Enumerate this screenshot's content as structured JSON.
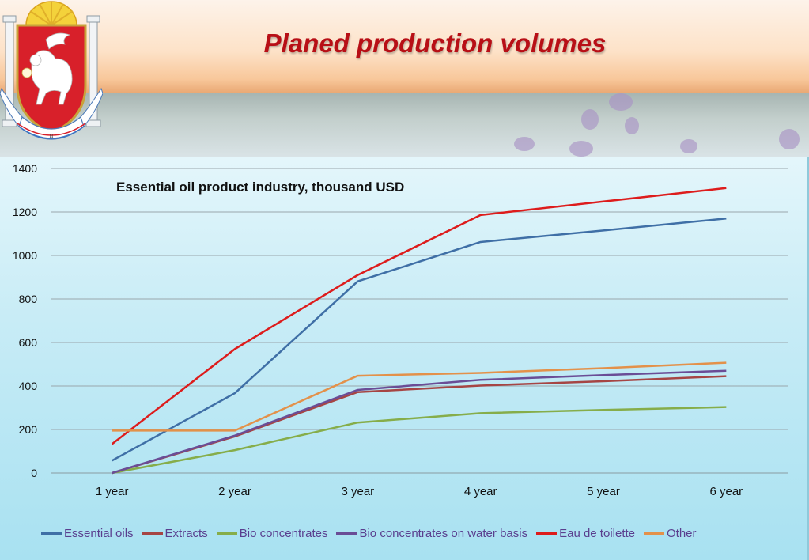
{
  "slide": {
    "title": "Planed production volumes"
  },
  "emblem": {
    "ribbon_text": "ПРОЦВЕТАНИЕ В ЕДИНСТВЕ",
    "ribbon_mark": "II"
  },
  "chart_data": {
    "type": "line",
    "title": "Essential oil product industry, thousand USD",
    "xlabel": "",
    "ylabel": "",
    "categories": [
      "1 year",
      "2 year",
      "3 year",
      "4 year",
      "5 year",
      "6 year"
    ],
    "ylim": [
      0,
      1400
    ],
    "yticks": [
      0,
      200,
      400,
      600,
      800,
      1000,
      1200,
      1400
    ],
    "grid": true,
    "legend_position": "bottom",
    "series": [
      {
        "name": "Essential oils",
        "color": "#3f6fa6",
        "values": [
          57,
          367,
          881,
          1062,
          1115,
          1170
        ]
      },
      {
        "name": "Extracts",
        "color": "#a64544",
        "values": [
          0,
          168,
          372,
          402,
          422,
          445
        ]
      },
      {
        "name": "Bio concentrates",
        "color": "#86ad4a",
        "values": [
          0,
          105,
          232,
          275,
          290,
          303
        ]
      },
      {
        "name": "Bio concentrates on water basis",
        "color": "#6a4d96",
        "values": [
          0,
          172,
          382,
          428,
          450,
          470
        ]
      },
      {
        "name": "Eau de toilette",
        "color": "#dd1c1c",
        "values": [
          133,
          570,
          910,
          1186,
          1248,
          1310
        ]
      },
      {
        "name": "Other",
        "color": "#e3914a",
        "values": [
          195,
          195,
          447,
          460,
          482,
          507
        ]
      }
    ]
  }
}
